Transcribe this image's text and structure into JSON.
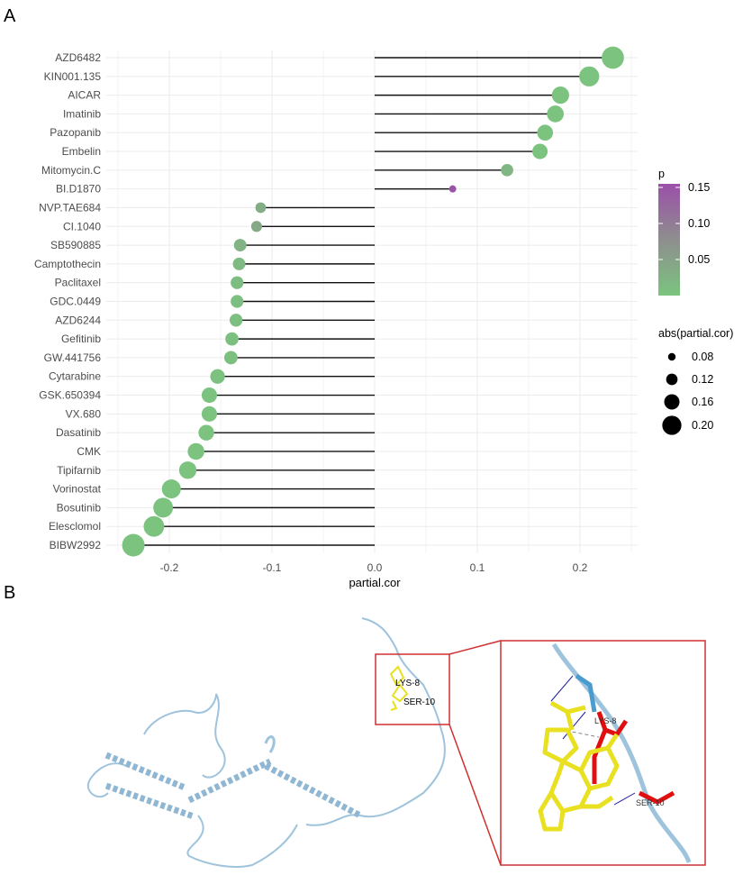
{
  "panels": {
    "a_label": "A",
    "b_label": "B"
  },
  "chart_data": {
    "type": "lollipop",
    "xlabel": "partial.cor",
    "ylabel": "",
    "xlim": [
      -0.25,
      0.26
    ],
    "xticks": [
      -0.2,
      -0.1,
      0.0,
      0.1,
      0.2
    ],
    "xtick_labels": [
      "-0.2",
      "-0.1",
      "0.0",
      "0.1",
      "0.2"
    ],
    "grid": true,
    "categories": [
      "AZD6482",
      "KIN001.135",
      "AICAR",
      "Imatinib",
      "Pazopanib",
      "Embelin",
      "Mitomycin.C",
      "BI.D1870",
      "NVP.TAE684",
      "CI.1040",
      "SB590885",
      "Camptothecin",
      "Paclitaxel",
      "GDC.0449",
      "AZD6244",
      "Gefitinib",
      "GW.441756",
      "Cytarabine",
      "GSK.650394",
      "VX.680",
      "Dasatinib",
      "CMK",
      "Tipifarnib",
      "Vorinostat",
      "Bosutinib",
      "Elesclomol",
      "BIBW2992"
    ],
    "values": [
      0.232,
      0.209,
      0.181,
      0.176,
      0.166,
      0.161,
      0.129,
      0.076,
      -0.111,
      -0.115,
      -0.131,
      -0.132,
      -0.134,
      -0.134,
      -0.135,
      -0.139,
      -0.14,
      -0.153,
      -0.161,
      -0.161,
      -0.164,
      -0.174,
      -0.182,
      -0.198,
      -0.206,
      -0.215,
      -0.235
    ],
    "p": [
      0.001,
      0.001,
      0.001,
      0.001,
      0.001,
      0.001,
      0.02,
      0.15,
      0.035,
      0.04,
      0.025,
      0.015,
      0.01,
      0.008,
      0.008,
      0.006,
      0.006,
      0.004,
      0.002,
      0.002,
      0.002,
      0.001,
      0.001,
      0.001,
      0.001,
      0.001,
      0.001
    ],
    "color_legend": {
      "title": "p",
      "ticks": [
        0.15,
        0.1,
        0.05
      ],
      "tick_labels": [
        "0.15",
        "0.10",
        "0.05"
      ],
      "low_color": "#7bc47f",
      "mid_color": "#8e8e8e",
      "high_color": "#9b4fa9",
      "range": [
        0,
        0.155
      ]
    },
    "size_legend": {
      "title": "abs(partial.cor)",
      "values": [
        0.08,
        0.12,
        0.16,
        0.2
      ],
      "labels": [
        "0.08",
        "0.12",
        "0.16",
        "0.20"
      ]
    },
    "legend_position": "right"
  },
  "structure": {
    "residue_labels": [
      "LYS-8",
      "SER-10"
    ],
    "inset_labels": [
      "LYS-8",
      "SER-10"
    ],
    "colors": {
      "protein": "#9ec3dc",
      "ligand": "#e8e020",
      "residue": "#e01010",
      "frame": "#d03030",
      "hbond": "#1a1aa0"
    }
  }
}
